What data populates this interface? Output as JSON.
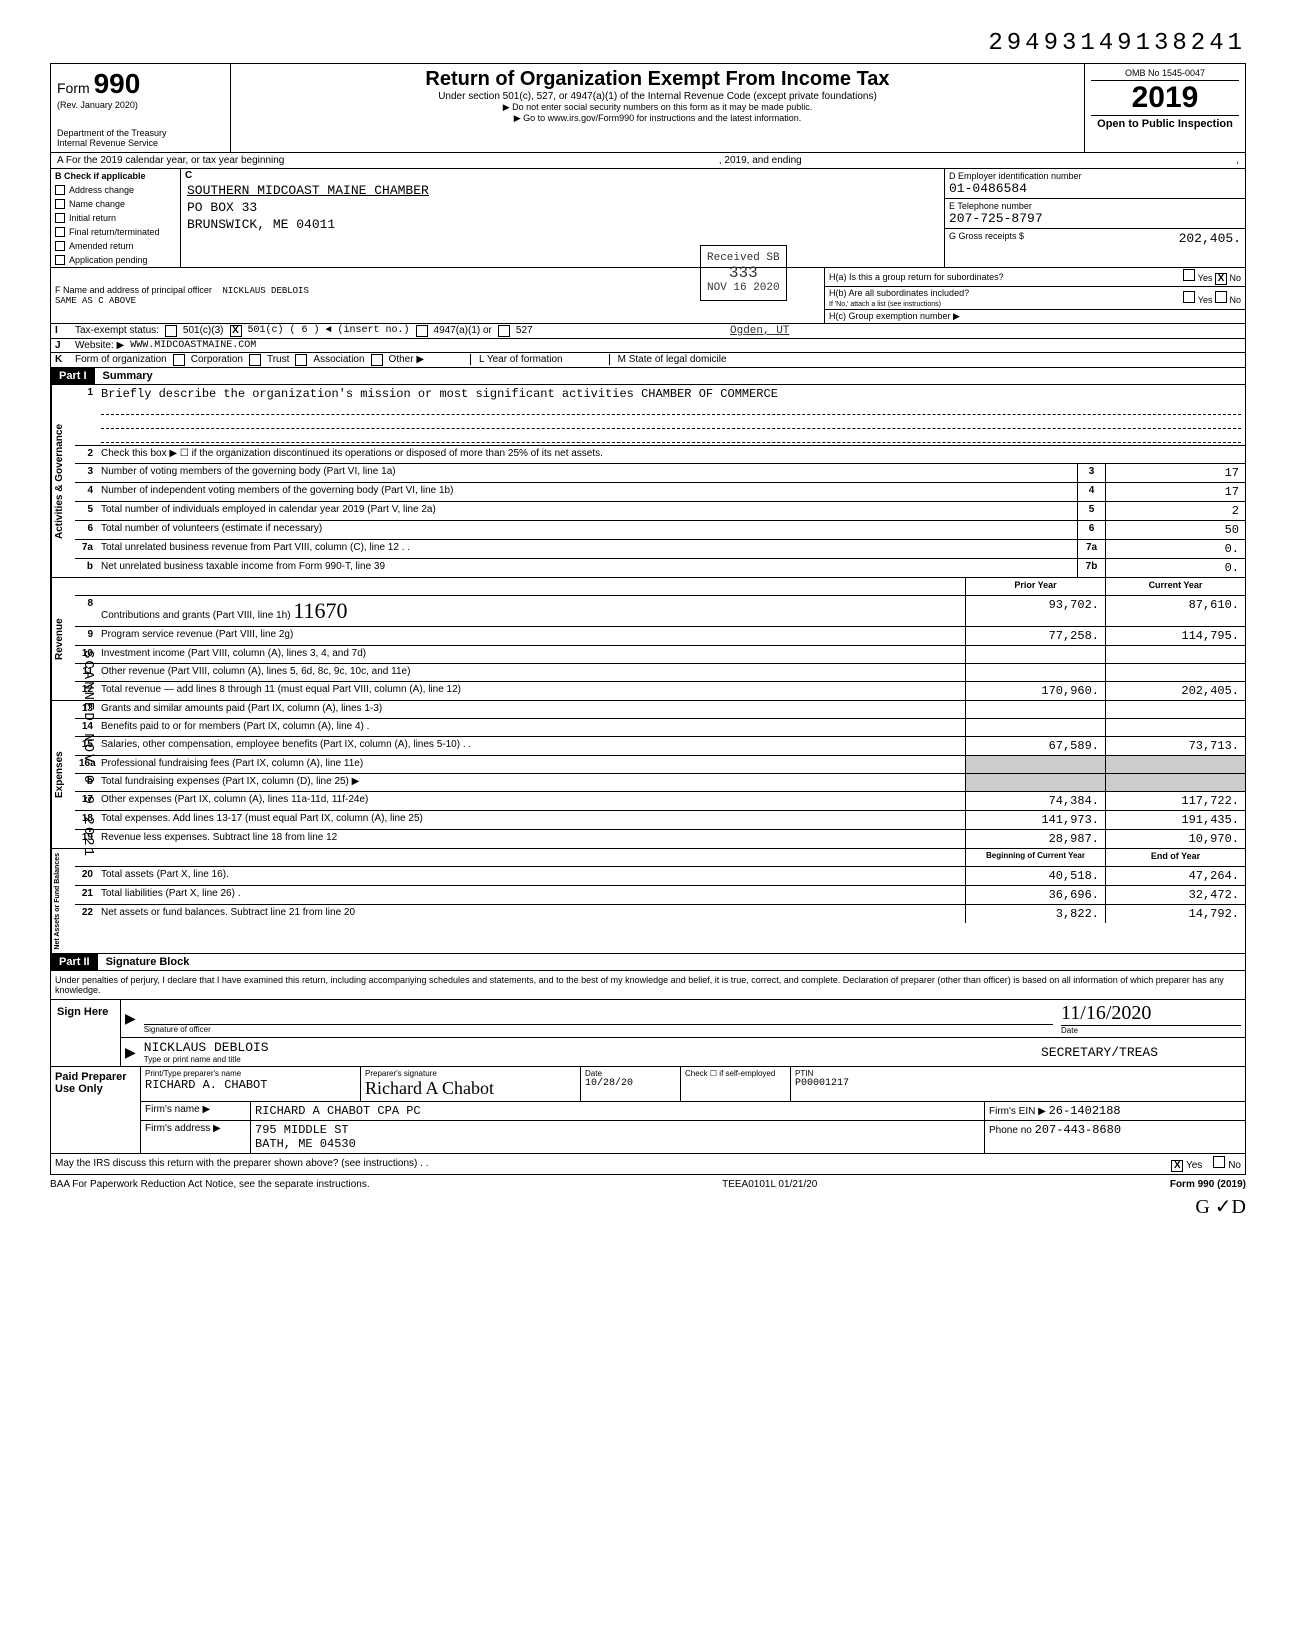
{
  "top_tracking_number": "29493149138241",
  "header": {
    "form_prefix": "Form",
    "form_number": "990",
    "rev": "(Rev. January 2020)",
    "dept": "Department of the Treasury\nInternal Revenue Service",
    "title": "Return of Organization Exempt From Income Tax",
    "subtitle": "Under section 501(c), 527, or 4947(a)(1) of the Internal Revenue Code (except private foundations)",
    "arrow1": "▶ Do not enter social security numbers on this form as it may be made public.",
    "arrow2": "▶ Go to www.irs.gov/Form990 for instructions and the latest information.",
    "omb": "OMB No 1545-0047",
    "year": "2019",
    "open": "Open to Public Inspection"
  },
  "row_a": {
    "left": "A   For the 2019 calendar year, or tax year beginning",
    "mid": ", 2019, and ending",
    "right": ","
  },
  "b_checks": {
    "head": "B  Check if applicable",
    "items": [
      "Address change",
      "Name change",
      "Initial return",
      "Final return/terminated",
      "Amended return",
      "Application pending"
    ]
  },
  "c": {
    "head": "C",
    "name": "SOUTHERN MIDCOAST MAINE CHAMBER",
    "addr1": "PO BOX 33",
    "addr2": "BRUNSWICK, ME 04011"
  },
  "d": {
    "label": "D  Employer identification number",
    "value": "01-0486584"
  },
  "e": {
    "label": "E  Telephone number",
    "value": "207-725-8797"
  },
  "g": {
    "label": "G  Gross receipts $",
    "value": "202,405."
  },
  "f": {
    "label": "F  Name and address of principal officer",
    "name": "NICKLAUS DEBLOIS",
    "addr": "SAME AS C ABOVE"
  },
  "h": {
    "a_label": "H(a) Is this a group return for subordinates?",
    "b_label": "H(b) Are all subordinates included?",
    "b_note": "If 'No,' attach a list (see instructions)",
    "c_label": "H(c) Group exemption number ▶",
    "yes": "Yes",
    "no": "No",
    "x": "X"
  },
  "i": {
    "label": "Tax-exempt status:",
    "opt1": "501(c)(3)",
    "opt2": "501(c) ( 6 ) ◄ (insert no.)",
    "opt3": "4947(a)(1) or",
    "opt4": "527",
    "x": "X"
  },
  "j": {
    "label": "Website: ▶",
    "value": "WWW.MIDCOASTMAINE.COM"
  },
  "k": {
    "label": "Form of organization",
    "opts": [
      "Corporation",
      "Trust",
      "Association",
      "Other ▶"
    ],
    "l_label": "L Year of formation",
    "m_label": "M State of legal domicile"
  },
  "received_stamp": {
    "l1": "Received SB",
    "l2": "333",
    "l3": "NOV 16 2020"
  },
  "ogden": "Ogden, UT",
  "scanned_side": "SCANNED NOV 0 9 2021",
  "part1": {
    "tag": "Part I",
    "title": "Summary"
  },
  "governance": {
    "side": "Activities & Governance",
    "rows": [
      {
        "n": "1",
        "t": "Briefly describe the organization's mission or most significant activities CHAMBER OF COMMERCE"
      },
      {
        "n": "2",
        "t": "Check this box ▶ ☐ if the organization discontinued its operations or disposed of more than 25% of its net assets."
      },
      {
        "n": "3",
        "t": "Number of voting members of the governing body (Part VI, line 1a)",
        "box": "3",
        "v": "17"
      },
      {
        "n": "4",
        "t": "Number of independent voting members of the governing body (Part VI, line 1b)",
        "box": "4",
        "v": "17"
      },
      {
        "n": "5",
        "t": "Total number of individuals employed in calendar year 2019 (Part V, line 2a)",
        "box": "5",
        "v": "2"
      },
      {
        "n": "6",
        "t": "Total number of volunteers (estimate if necessary)",
        "box": "6",
        "v": "50"
      },
      {
        "n": "7a",
        "t": "Total unrelated business revenue from Part VIII, column (C), line 12  . .",
        "box": "7a",
        "v": "0."
      },
      {
        "n": "b",
        "t": "Net unrelated business taxable income from Form 990-T, line 39",
        "box": "7b",
        "v": "0."
      }
    ]
  },
  "two_col_header": {
    "prior": "Prior Year",
    "current": "Current Year"
  },
  "revenue": {
    "side": "Revenue",
    "rows": [
      {
        "n": "8",
        "t": "Contributions and grants (Part VIII, line 1h)",
        "p": "93,702.",
        "c": "87,610."
      },
      {
        "n": "9",
        "t": "Program service revenue (Part VIII, line 2g)",
        "p": "77,258.",
        "c": "114,795."
      },
      {
        "n": "10",
        "t": "Investment income (Part VIII, column (A), lines 3, 4, and 7d)",
        "p": "",
        "c": ""
      },
      {
        "n": "11",
        "t": "Other revenue (Part VIII, column (A), lines 5, 6d, 8c, 9c, 10c, and 11e)",
        "p": "",
        "c": ""
      },
      {
        "n": "12",
        "t": "Total revenue — add lines 8 through 11 (must equal Part VIII, column (A), line 12)",
        "p": "170,960.",
        "c": "202,405."
      }
    ]
  },
  "expenses": {
    "side": "Expenses",
    "rows": [
      {
        "n": "13",
        "t": "Grants and similar amounts paid (Part IX, column (A), lines 1-3)",
        "p": "",
        "c": ""
      },
      {
        "n": "14",
        "t": "Benefits paid to or for members (Part IX, column (A), line 4)  .",
        "p": "",
        "c": ""
      },
      {
        "n": "15",
        "t": "Salaries, other compensation, employee benefits (Part IX, column (A), lines 5-10)  . .",
        "p": "67,589.",
        "c": "73,713."
      },
      {
        "n": "16a",
        "t": "Professional fundraising fees (Part IX, column (A), line 11e)",
        "p": "shade",
        "c": "shade"
      },
      {
        "n": "b",
        "t": "Total fundraising expenses (Part IX, column (D), line 25) ▶",
        "p": "shade",
        "c": "shade"
      },
      {
        "n": "17",
        "t": "Other expenses (Part IX, column (A), lines 11a-11d, 11f-24e)",
        "p": "74,384.",
        "c": "117,722."
      },
      {
        "n": "18",
        "t": "Total expenses. Add lines 13-17 (must equal Part IX, column (A), line 25)",
        "p": "141,973.",
        "c": "191,435."
      },
      {
        "n": "19",
        "t": "Revenue less expenses. Subtract line 18 from line 12",
        "p": "28,987.",
        "c": "10,970."
      }
    ]
  },
  "assets_header": {
    "begin": "Beginning of Current Year",
    "end": "End of Year"
  },
  "assets": {
    "side": "Net Assets or Fund Balances",
    "rows": [
      {
        "n": "20",
        "t": "Total assets (Part X, line 16).",
        "p": "40,518.",
        "c": "47,264."
      },
      {
        "n": "21",
        "t": "Total liabilities (Part X, line 26) .",
        "p": "36,696.",
        "c": "32,472."
      },
      {
        "n": "22",
        "t": "Net assets or fund balances. Subtract line 21 from line 20",
        "p": "3,822.",
        "c": "14,792."
      }
    ]
  },
  "part2": {
    "tag": "Part II",
    "title": "Signature Block"
  },
  "perjury": "Under penalties of perjury, I declare that I have examined this return, including accompanying schedules and statements, and to the best of my knowledge and belief, it is true, correct, and complete. Declaration of preparer (other than officer) is based on all information of which preparer has any knowledge.",
  "sign": {
    "left": "Sign Here",
    "sig_label": "Signature of officer",
    "date_label": "Date",
    "date_value": "11/16/2020",
    "name": "NICKLAUS DEBLOIS",
    "title": "SECRETARY/TREAS",
    "name_label": "Type or print name and title"
  },
  "preparer": {
    "left": "Paid Preparer Use Only",
    "h1": "Print/Type preparer's name",
    "h2": "Preparer's signature",
    "h3": "Date",
    "h4": "Check ☐ if self-employed",
    "h5": "PTIN",
    "name": "RICHARD A. CHABOT",
    "sig": "Richard A Chabot",
    "date": "10/28/20",
    "ptin": "P00001217",
    "firm_label": "Firm's name ▶",
    "firm_name": "RICHARD A CHABOT CPA PC",
    "addr_label": "Firm's address ▶",
    "addr1": "795 MIDDLE ST",
    "addr2": "BATH, ME 04530",
    "ein_label": "Firm's EIN ▶",
    "ein": "26-1402188",
    "phone_label": "Phone no",
    "phone": "207-443-8680"
  },
  "discuss": {
    "text": "May the IRS discuss this return with the preparer shown above? (see instructions) . .",
    "yes": "Yes",
    "no": "No",
    "x": "X"
  },
  "baa": {
    "left": "BAA  For Paperwork Reduction Act Notice, see the separate instructions.",
    "mid": "TEEA0101L 01/21/20",
    "right": "Form 990 (2019)"
  },
  "handwritten": "G ✓D",
  "initials": "11670"
}
